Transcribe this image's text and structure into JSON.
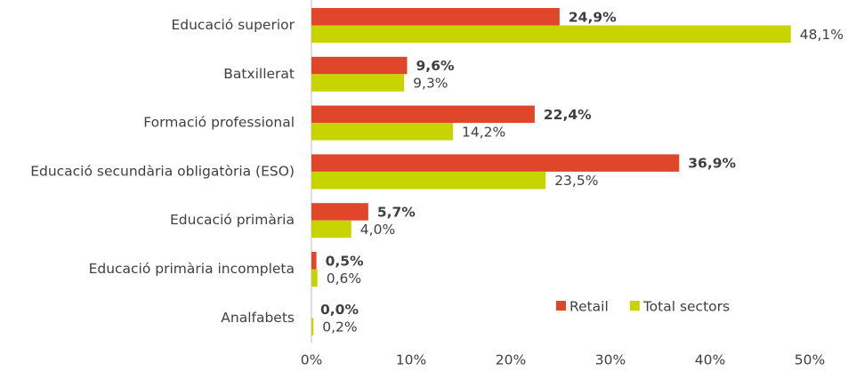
{
  "chart_data": {
    "type": "bar",
    "orientation": "horizontal",
    "categories": [
      "Educació superior",
      "Batxillerat",
      "Formació professional",
      "Educació secundària obligatòria (ESO)",
      "Educació primària",
      "Educació primària incompleta",
      "Analfabets"
    ],
    "series": [
      {
        "name": "Retail",
        "color": "#e0462a",
        "values": [
          24.9,
          9.6,
          22.4,
          36.9,
          5.7,
          0.5,
          0.0
        ],
        "value_labels": [
          "24,9%",
          "9,6%",
          "22,4%",
          "36,9%",
          "5,7%",
          "0,5%",
          "0,0%"
        ]
      },
      {
        "name": "Total sectors",
        "color": "#c8d400",
        "values": [
          48.1,
          9.3,
          14.2,
          23.5,
          4.0,
          0.6,
          0.2
        ],
        "value_labels": [
          "48,1%",
          "9,3%",
          "14,2%",
          "23,5%",
          "4,0%",
          "0,6%",
          "0,2%"
        ]
      }
    ],
    "xlim": [
      0,
      50
    ],
    "xticks": [
      {
        "value": 0,
        "label": "0%"
      },
      {
        "value": 10,
        "label": "10%"
      },
      {
        "value": 20,
        "label": "20%"
      },
      {
        "value": 30,
        "label": "30%"
      },
      {
        "value": 40,
        "label": "40%"
      },
      {
        "value": 50,
        "label": "50%"
      }
    ],
    "legend": "lower right",
    "grid": false
  }
}
